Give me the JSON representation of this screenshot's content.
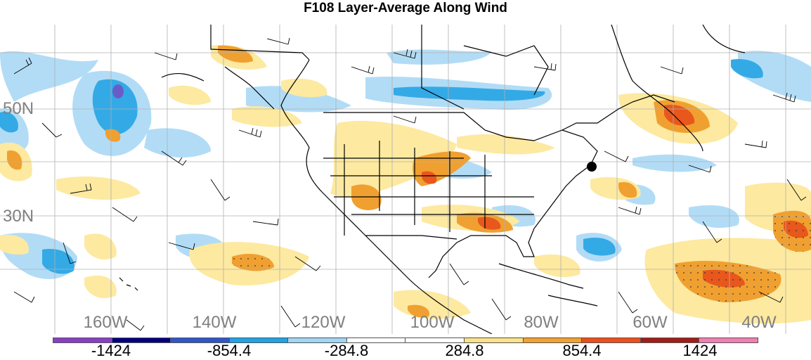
{
  "title": "F108 Layer-Average Along Wind",
  "latitude_labels": [
    "50N",
    "30N"
  ],
  "longitude_labels": [
    "160W",
    "140W",
    "120W",
    "100W",
    "80W",
    "60W",
    "40W"
  ],
  "colorbar": {
    "colors": [
      "#8a3ec6",
      "#00007f",
      "#2e56c9",
      "#1fa4e8",
      "#9fd6f5",
      "#ffffff",
      "#ffffff",
      "#fbe286",
      "#f3a12d",
      "#ef4e1a",
      "#a11d17",
      "#f07fb3"
    ],
    "labels": [
      "-1424",
      "-854.4",
      "-284.8",
      "284.8",
      "854.4",
      "1424"
    ]
  },
  "colors": {
    "lightblue": "#b2dcf6",
    "blue": "#33aae6",
    "darkblue": "#6a5cc8",
    "lightyellow": "#fde9a0",
    "orange": "#f0a030",
    "red": "#e8571c",
    "land_outline": "#000000",
    "grid": "#b0b0b0"
  },
  "marker": "black-dot"
}
